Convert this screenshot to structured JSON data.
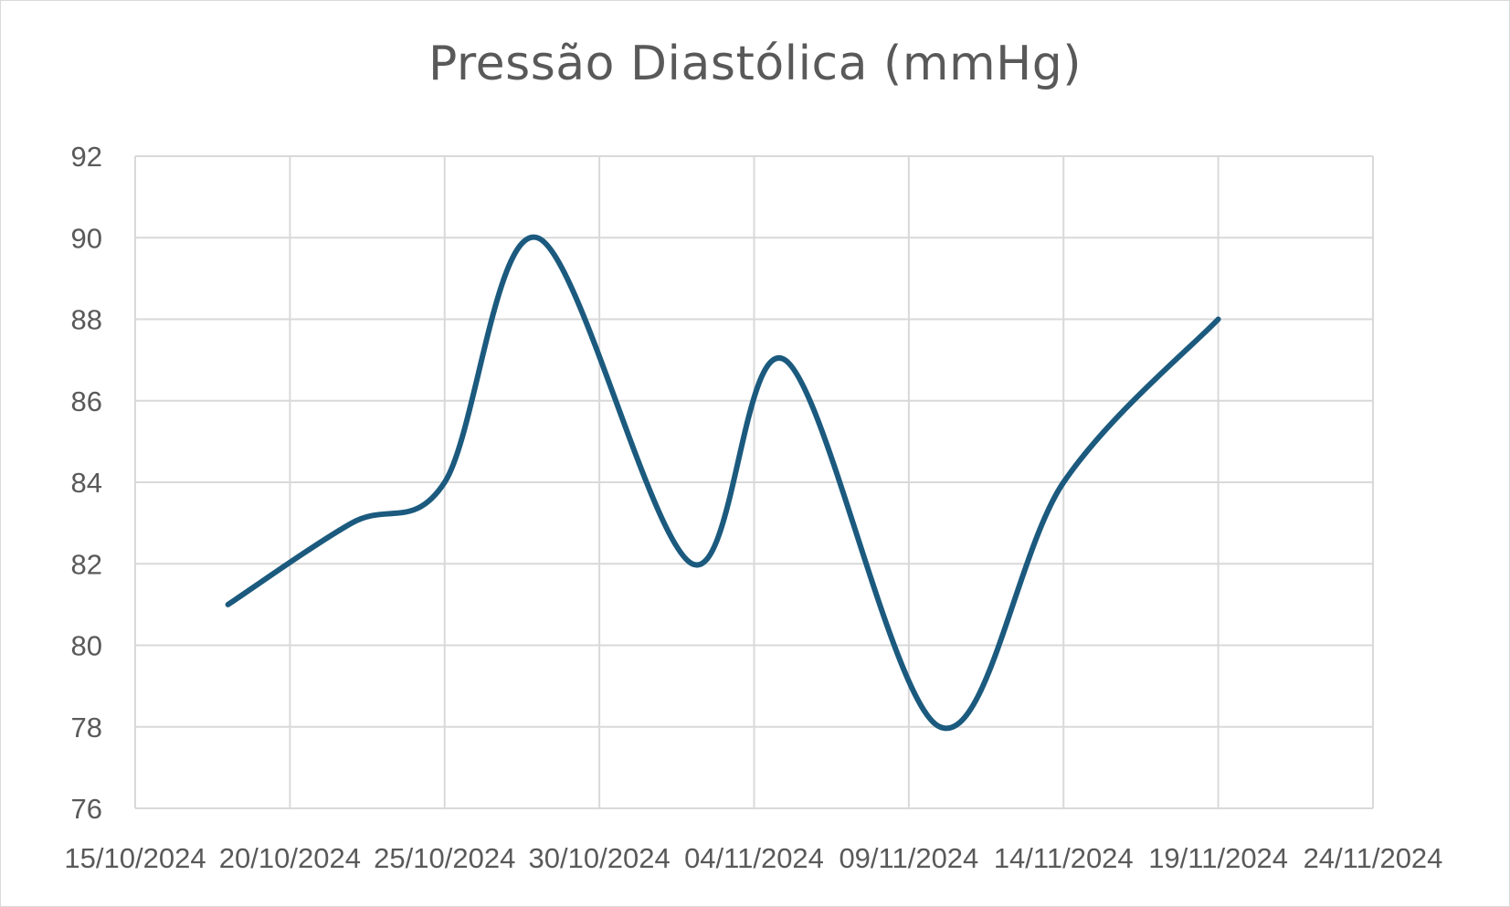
{
  "chart_data": {
    "type": "line",
    "title": "Pressão Diastólica (mmHg)",
    "xlabel": "",
    "ylabel": "",
    "x_axis_type": "date",
    "xlim": [
      "15/10/2024",
      "14/11/2024"
    ],
    "ylim": [
      76,
      92
    ],
    "x_tick_labels": [
      "15/10/2024",
      "20/10/2024",
      "25/10/2024",
      "30/10/2024",
      "04/11/2024",
      "09/11/2024",
      "14/11/2024",
      "19/11/2024",
      "24/11/2024"
    ],
    "y_ticks": [
      76,
      78,
      80,
      82,
      84,
      86,
      88,
      90,
      92
    ],
    "grid": true,
    "legend": "none",
    "smooth": true,
    "series": [
      {
        "color": "#1b5a7e",
        "x": [
          "18/10/2024",
          "22/10/2024",
          "25/10/2024",
          "28/10/2024",
          "02/11/2024",
          "05/11/2024",
          "10/11/2024",
          "14/11/2024",
          "19/11/2024"
        ],
        "y": [
          81,
          83,
          84,
          90,
          82,
          87,
          78,
          84,
          88
        ]
      }
    ]
  }
}
